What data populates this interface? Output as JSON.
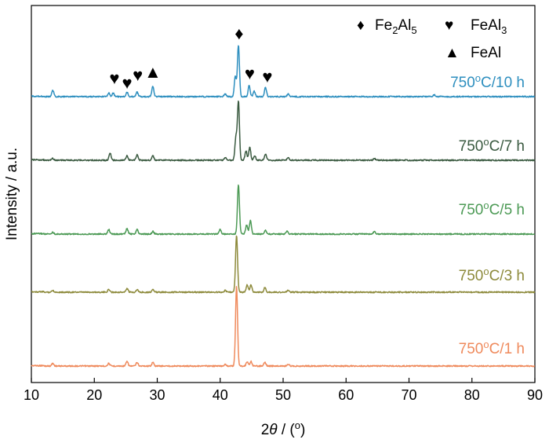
{
  "chart_data": {
    "type": "line",
    "title": "",
    "xlabel": "2θ / (°)",
    "ylabel": "Intensity / a.u.",
    "xlim": [
      10,
      90
    ],
    "xticks": [
      10,
      20,
      30,
      40,
      50,
      60,
      70,
      80,
      90
    ],
    "yticks": [],
    "grid": false,
    "series": [
      {
        "name": "750°C/1 h",
        "label_parts": {
          "temp": "750",
          "unit": "C/1 h"
        },
        "color": "#ef8a5c",
        "baseline": 0.0,
        "peaks": [
          [
            13.4,
            0.03
          ],
          [
            22.3,
            0.03
          ],
          [
            25.2,
            0.05
          ],
          [
            26.8,
            0.04
          ],
          [
            29.3,
            0.04
          ],
          [
            40.8,
            0.02
          ],
          [
            42.6,
            0.88
          ],
          [
            44.3,
            0.05
          ],
          [
            44.9,
            0.05
          ],
          [
            47.1,
            0.04
          ],
          [
            50.8,
            0.02
          ]
        ]
      },
      {
        "name": "750°C/3 h",
        "label_parts": {
          "temp": "750",
          "unit": "C/3 h"
        },
        "color": "#8d8a3b",
        "baseline": 1.0,
        "peaks": [
          [
            13.4,
            0.02
          ],
          [
            22.3,
            0.03
          ],
          [
            25.2,
            0.04
          ],
          [
            26.8,
            0.03
          ],
          [
            29.3,
            0.03
          ],
          [
            40.8,
            0.02
          ],
          [
            42.6,
            0.63
          ],
          [
            44.3,
            0.08
          ],
          [
            44.9,
            0.08
          ],
          [
            47.1,
            0.05
          ],
          [
            50.8,
            0.02
          ]
        ]
      },
      {
        "name": "750°C/5 h",
        "label_parts": {
          "temp": "750",
          "unit": "C/5 h"
        },
        "color": "#4c9a55",
        "baseline": 2.0,
        "peaks": [
          [
            13.4,
            0.02
          ],
          [
            22.3,
            0.05
          ],
          [
            25.2,
            0.06
          ],
          [
            26.8,
            0.05
          ],
          [
            29.3,
            0.03
          ],
          [
            40.0,
            0.05
          ],
          [
            42.9,
            0.55
          ],
          [
            44.2,
            0.1
          ],
          [
            44.8,
            0.15
          ],
          [
            47.2,
            0.04
          ],
          [
            50.6,
            0.03
          ],
          [
            64.5,
            0.03
          ]
        ]
      },
      {
        "name": "750°C/7 h",
        "label_parts": {
          "temp": "750",
          "unit": "C/7 h"
        },
        "color": "#3a5a40",
        "baseline": 3.0,
        "peaks": [
          [
            13.4,
            0.02
          ],
          [
            22.5,
            0.08
          ],
          [
            25.2,
            0.05
          ],
          [
            26.8,
            0.06
          ],
          [
            29.3,
            0.05
          ],
          [
            40.8,
            0.03
          ],
          [
            42.5,
            0.25
          ],
          [
            42.9,
            0.65
          ],
          [
            44.1,
            0.1
          ],
          [
            44.7,
            0.14
          ],
          [
            45.5,
            0.05
          ],
          [
            47.2,
            0.07
          ],
          [
            50.8,
            0.03
          ],
          [
            64.5,
            0.02
          ]
        ]
      },
      {
        "name": "750°C/10 h",
        "label_parts": {
          "temp": "750",
          "unit": "C/10 h"
        },
        "color": "#2e8fbf",
        "baseline": 4.0,
        "peaks": [
          [
            13.4,
            0.07
          ],
          [
            22.3,
            0.04
          ],
          [
            23.0,
            0.04
          ],
          [
            25.2,
            0.05
          ],
          [
            26.8,
            0.05
          ],
          [
            29.3,
            0.11
          ],
          [
            40.8,
            0.03
          ],
          [
            42.4,
            0.22
          ],
          [
            42.9,
            0.57
          ],
          [
            44.6,
            0.12
          ],
          [
            45.4,
            0.06
          ],
          [
            47.2,
            0.1
          ],
          [
            50.8,
            0.03
          ],
          [
            74.0,
            0.02
          ]
        ]
      }
    ],
    "phase_markers": [
      {
        "symbol": "♦",
        "phase": "Fe2Al5",
        "x": 43.0
      },
      {
        "symbol": "♥",
        "phase": "FeAl3",
        "x": 23.2
      },
      {
        "symbol": "♥",
        "phase": "FeAl3",
        "x": 25.2
      },
      {
        "symbol": "♥",
        "phase": "FeAl3",
        "x": 26.9
      },
      {
        "symbol": "▲",
        "phase": "FeAl",
        "x": 29.3
      },
      {
        "symbol": "♥",
        "phase": "FeAl3",
        "x": 44.7
      },
      {
        "symbol": "♥",
        "phase": "FeAl3",
        "x": 47.5
      }
    ],
    "legend": {
      "placement": "top-right",
      "entries": [
        {
          "symbol": "♦",
          "text": "Fe2Al5",
          "main": "Fe",
          "sub1": "2",
          "mid": "Al",
          "sub2": "5"
        },
        {
          "symbol": "♥",
          "text": "FeAl3",
          "main": "FeAl",
          "sub1": "3"
        },
        {
          "symbol": "▲",
          "text": "FeAl",
          "main": "FeAl"
        }
      ]
    }
  }
}
